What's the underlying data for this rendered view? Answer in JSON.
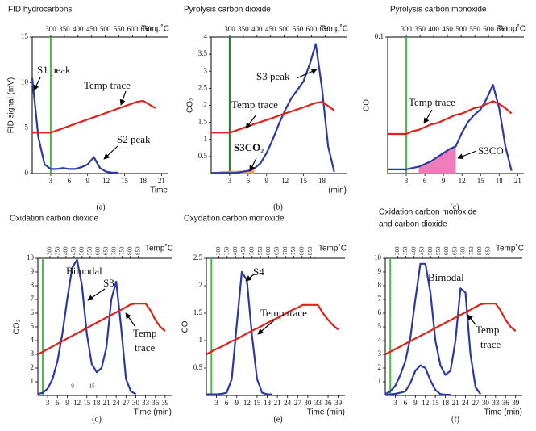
{
  "chart_data": [
    {
      "type": "line",
      "title": "FID hydrocarbons",
      "panel_label": "(a)",
      "xlabel": "Time",
      "ylabel": "FID signal (mV)",
      "x2label": "Temp˚C",
      "x": [
        0,
        1,
        2,
        3,
        4,
        5,
        6,
        7,
        8,
        9,
        10,
        11,
        12,
        13,
        14,
        15,
        16,
        17,
        18,
        19,
        20,
        21
      ],
      "xlim": [
        0,
        22
      ],
      "xticks": [
        3,
        6,
        9,
        12,
        15,
        18,
        21
      ],
      "ylim": [
        0,
        15
      ],
      "yticks": [
        0,
        5,
        10,
        15
      ],
      "x2lim": [
        232,
        729
      ],
      "x2ticks": [
        300,
        350,
        400,
        450,
        500,
        550,
        600,
        650
      ],
      "marker_x": 3,
      "marker_color": "#4cb648",
      "series": [
        {
          "color": "#2b3aa0",
          "values": [
            10.5,
            4,
            1,
            0.5,
            0.5,
            0.6,
            0.5,
            0.5,
            0.7,
            1,
            1.8,
            0.6,
            0.2,
            0.1,
            0.1,
            null,
            null,
            null,
            null,
            null,
            null,
            null
          ]
        },
        {
          "color": "#e0201b",
          "values": [
            4.5,
            4.5,
            4.5,
            4.5,
            4.74,
            4.98,
            5.22,
            5.47,
            5.71,
            5.95,
            6.19,
            6.43,
            6.67,
            6.91,
            7.16,
            7.4,
            7.64,
            7.88,
            8,
            7.6,
            7.2,
            null
          ]
        }
      ],
      "annotations": [
        {
          "text": "S1  peak"
        },
        {
          "text": "Temp trace"
        },
        {
          "text": "S2 peak"
        }
      ]
    },
    {
      "type": "line",
      "title": "Pyrolysis carbon dioxide",
      "panel_label": "(b)",
      "xlabel": "(min)",
      "ylabel": "CO₂",
      "x2label": "Temp˚C",
      "x": [
        0,
        1,
        2,
        3,
        4,
        5,
        6,
        7,
        8,
        9,
        10,
        11,
        12,
        13,
        14,
        15,
        16,
        17,
        18,
        19,
        20,
        21
      ],
      "xlim": [
        0,
        22
      ],
      "xticks": [
        3,
        6,
        9,
        12,
        15,
        18
      ],
      "ylim": [
        0,
        4
      ],
      "yticks": [
        0.5,
        1,
        1.5,
        2,
        2.5,
        3,
        3.5,
        4
      ],
      "x2lim": [
        232,
        729
      ],
      "x2ticks": [
        300,
        350,
        400,
        450,
        500,
        550,
        600,
        650
      ],
      "marker_x": 3,
      "marker_color": "#1e7a2e",
      "series": [
        {
          "color": "#e8a040",
          "fill": true,
          "values": [
            0.03,
            0.05,
            0.07,
            0.08,
            0.08,
            0.08,
            0.1,
            0.12,
            null,
            null,
            null,
            null,
            null,
            null,
            null,
            null,
            null,
            null,
            null,
            null,
            null,
            null
          ]
        },
        {
          "color": "#2b3aa0",
          "values": [
            0.02,
            0.02,
            0.02,
            0.02,
            0.02,
            0.05,
            0.08,
            0.15,
            0.3,
            0.6,
            1,
            1.45,
            1.85,
            2.2,
            2.45,
            2.7,
            3.2,
            3.8,
            2.5,
            0.8,
            0.05,
            null
          ]
        },
        {
          "color": "#e0201b",
          "values": [
            1.2,
            1.2,
            1.2,
            1.2,
            1.26,
            1.32,
            1.39,
            1.45,
            1.51,
            1.57,
            1.63,
            1.7,
            1.76,
            1.82,
            1.88,
            1.94,
            2.01,
            2.07,
            2.1,
            1.98,
            1.85,
            null
          ]
        }
      ],
      "annotations": [
        {
          "text": "S3 peak"
        },
        {
          "text": "Temp trace"
        },
        {
          "text": "S3CO₂"
        }
      ]
    },
    {
      "type": "line",
      "title": "Pyrolysis carbon monoxide",
      "panel_label": "(c)",
      "ylabel": "CO",
      "x2label": "Temp˚C",
      "x": [
        0,
        1,
        2,
        3,
        4,
        5,
        6,
        7,
        8,
        9,
        10,
        11,
        12,
        13,
        14,
        15,
        16,
        17,
        18,
        19,
        20,
        21
      ],
      "xlim": [
        0,
        22
      ],
      "xticks": [
        3,
        6,
        9,
        12,
        15,
        18,
        21
      ],
      "ylim": [
        0,
        0.1
      ],
      "yticks": [
        0.1
      ],
      "x2lim": [
        232,
        729
      ],
      "x2ticks": [
        300,
        350,
        400,
        450,
        500,
        550,
        600,
        650
      ],
      "marker_x": 3,
      "marker_color": "#4cb648",
      "series": [
        {
          "color": "#f06eb4",
          "fill": true,
          "values": [
            null,
            null,
            null,
            null,
            null,
            0.005,
            0.007,
            0.009,
            0.012,
            0.015,
            0.018,
            0.02,
            null,
            null,
            null,
            null,
            null,
            null,
            null,
            null,
            null,
            null
          ]
        },
        {
          "color": "#2b3aa0",
          "values": [
            0.003,
            0.003,
            0.003,
            0.003,
            0.004,
            0.005,
            0.007,
            0.009,
            0.012,
            0.015,
            0.018,
            0.02,
            0.03,
            0.038,
            0.043,
            0.047,
            0.055,
            0.065,
            0.048,
            0.02,
            0.002,
            null
          ]
        },
        {
          "color": "#e0201b",
          "values": [
            0.029,
            0.029,
            0.029,
            0.029,
            0.031,
            0.032,
            0.034,
            0.036,
            0.037,
            0.039,
            0.041,
            0.043,
            0.044,
            0.046,
            0.048,
            0.049,
            0.051,
            0.053,
            0.051,
            0.048,
            0.044,
            null
          ]
        }
      ],
      "annotations": [
        {
          "text": "Temp trace"
        },
        {
          "text": "S3CO"
        }
      ]
    },
    {
      "type": "line",
      "title": "Oxidation carbon dioxide",
      "panel_label": "(d)",
      "xlabel": "Time (min)",
      "ylabel": "CO₂",
      "x2label": "Temp˚C",
      "x": [
        0,
        1.5,
        3,
        4.5,
        6,
        7.5,
        9,
        10.5,
        12,
        13.5,
        15,
        16.5,
        18,
        19.5,
        21,
        22.5,
        24,
        25.5,
        27,
        28.5,
        30,
        31.5,
        33,
        34.5,
        36,
        37.5,
        39
      ],
      "xlim": [
        0,
        41
      ],
      "xticks": [
        3,
        6,
        9,
        12,
        15,
        18,
        21,
        24,
        27,
        30,
        33,
        36,
        39
      ],
      "ylim": [
        0,
        10
      ],
      "yticks": [
        1,
        2,
        3,
        4,
        5,
        6,
        7,
        8,
        9,
        10
      ],
      "x2lim": [
        225,
        1057
      ],
      "x2ticks": [
        300,
        350,
        400,
        450,
        500,
        550,
        600,
        650,
        700,
        750,
        800,
        850
      ],
      "marker_x": 1.5,
      "marker_color": "#4cb648",
      "series": [
        {
          "color": "#2b3aa0",
          "values": [
            0.1,
            0.2,
            0.5,
            1.2,
            2.5,
            4.5,
            7,
            9.3,
            9.9,
            8,
            4.5,
            2.3,
            1.7,
            2,
            3.5,
            7,
            8.3,
            5,
            1.2,
            0.3,
            0.1,
            null,
            null,
            null,
            null,
            null,
            null
          ]
        },
        {
          "color": "#e0201b",
          "values": [
            3,
            3.19,
            3.38,
            3.57,
            3.77,
            3.96,
            4.15,
            4.34,
            4.53,
            4.72,
            4.91,
            5.11,
            5.3,
            5.49,
            5.68,
            5.87,
            6.06,
            6.25,
            6.45,
            6.64,
            6.7,
            6.7,
            6.7,
            6.2,
            5.5,
            5,
            4.7
          ]
        }
      ],
      "annotations": [
        {
          "text": "Bimodal"
        },
        {
          "text": "S3"
        },
        {
          "text": "Temp"
        },
        {
          "text": "trace"
        },
        {
          "text": "9"
        },
        {
          "text": "15"
        }
      ]
    },
    {
      "type": "line",
      "title": "Oxydation carbon monoxide",
      "panel_label": "(e)",
      "xlabel": "Time (min)",
      "ylabel": "CO",
      "x2label": "Temp˚C",
      "x": [
        0,
        1.5,
        3,
        4.5,
        6,
        7.5,
        9,
        10.5,
        12,
        13.5,
        15,
        16.5,
        18,
        19.5,
        21,
        22.5,
        24,
        25.5,
        27,
        28.5,
        30,
        31.5,
        33,
        34.5,
        36,
        37.5,
        39
      ],
      "xlim": [
        0,
        41
      ],
      "xticks": [
        3,
        6,
        9,
        12,
        15,
        18,
        21,
        24,
        27,
        30,
        33,
        36,
        39
      ],
      "ylim": [
        0,
        2.5
      ],
      "yticks": [
        0.5,
        1,
        1.5,
        2,
        2.5
      ],
      "x2lim": [
        225,
        1057
      ],
      "x2ticks": [
        300,
        350,
        400,
        450,
        500,
        550,
        600,
        650,
        700,
        750,
        800,
        850
      ],
      "marker_x": 1.5,
      "marker_color": "#4cb648",
      "series": [
        {
          "color": "#2b3aa0",
          "values": [
            0.02,
            0.02,
            0.02,
            0.03,
            0.05,
            0.3,
            1.3,
            2.25,
            2.1,
            1.1,
            0.3,
            0.05,
            0.02,
            0.02,
            null,
            null,
            null,
            null,
            null,
            null,
            null,
            null,
            null,
            null,
            null,
            null,
            null
          ]
        },
        {
          "color": "#e0201b",
          "values": [
            0.75,
            0.8,
            0.85,
            0.89,
            0.94,
            0.99,
            1.03,
            1.08,
            1.13,
            1.18,
            1.22,
            1.27,
            1.32,
            1.37,
            1.41,
            1.46,
            1.51,
            1.56,
            1.6,
            1.65,
            1.65,
            1.65,
            1.65,
            1.5,
            1.38,
            1.28,
            1.2
          ]
        }
      ],
      "annotations": [
        {
          "text": "S4"
        },
        {
          "text": "Temp trace"
        }
      ]
    },
    {
      "type": "line",
      "title": "Oxidation carbon monoxide",
      "subtitle": "and carbon dioxide",
      "panel_label": "(f)",
      "xlabel": "Time (min)",
      "x2label": "Temp˚C",
      "x": [
        0,
        1.5,
        3,
        4.5,
        6,
        7.5,
        9,
        10.5,
        12,
        13.5,
        15,
        16.5,
        18,
        19.5,
        21,
        22.5,
        24,
        25.5,
        27,
        28.5,
        30,
        31.5,
        33,
        34.5,
        36,
        37.5,
        39
      ],
      "xlim": [
        0,
        41
      ],
      "xticks": [
        3,
        6,
        9,
        12,
        15,
        18,
        21,
        24,
        27,
        30,
        33,
        36,
        39
      ],
      "ylim": [
        0,
        10
      ],
      "yticks": [
        1,
        2,
        3,
        4,
        5,
        6,
        7,
        8,
        9,
        10
      ],
      "x2lim": [
        225,
        1057
      ],
      "x2ticks": [
        300,
        350,
        400,
        450,
        500,
        550,
        600,
        650,
        700,
        750,
        800,
        850
      ],
      "marker_x": 1.5,
      "marker_color": "#4cb648",
      "series": [
        {
          "color": "#2b3aa0",
          "values": [
            0.1,
            0.3,
            0.7,
            1.5,
            2.5,
            4.2,
            7,
            9.6,
            9.6,
            7.5,
            4,
            2.2,
            1.5,
            1.8,
            4,
            7.8,
            7.5,
            3,
            0.6,
            0.1,
            null,
            null,
            null,
            null,
            null,
            null,
            null
          ]
        },
        {
          "color": "#2b3aa0",
          "values": [
            0.05,
            0.08,
            0.12,
            0.2,
            0.3,
            0.9,
            1.8,
            2.2,
            2,
            1.1,
            0.4,
            0.1,
            0.05,
            0.05,
            null,
            null,
            null,
            null,
            null,
            null,
            null,
            null,
            null,
            null,
            null,
            null,
            null
          ]
        },
        {
          "color": "#e0201b",
          "values": [
            3,
            3.19,
            3.38,
            3.57,
            3.77,
            3.96,
            4.15,
            4.34,
            4.53,
            4.72,
            4.91,
            5.11,
            5.3,
            5.49,
            5.68,
            5.87,
            6.06,
            6.25,
            6.45,
            6.64,
            6.7,
            6.7,
            6.7,
            6.2,
            5.5,
            5,
            4.7
          ]
        }
      ],
      "annotations": [
        {
          "text": "Bimodal"
        },
        {
          "text": "Temp"
        },
        {
          "text": "trace"
        }
      ]
    }
  ]
}
